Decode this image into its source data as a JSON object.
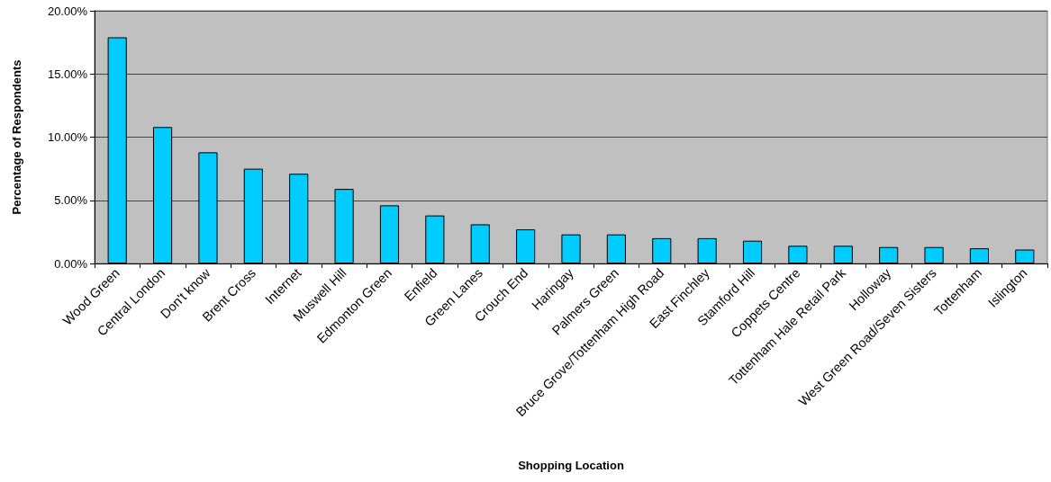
{
  "chart_data": {
    "type": "bar",
    "xlabel": "Shopping Location",
    "ylabel": "Percentage of Respondents",
    "categories": [
      "Wood Green",
      "Central London",
      "Don't know",
      "Brent Cross",
      "Internet",
      "Muswell Hill",
      "Edmonton Green",
      "Enfield",
      "Green Lanes",
      "Crouch End",
      "Haringay",
      "Palmers Green",
      "Bruce Grove/Tottenham High Road",
      "East Finchley",
      "Stamford Hill",
      "Coppets Centre",
      "Tottenham Hale Retail Park",
      "Holloway",
      "West Green Road/Seven Sisters",
      "Tottenham",
      "Islington"
    ],
    "values": [
      17.9,
      10.8,
      8.8,
      7.5,
      7.1,
      5.9,
      4.6,
      3.8,
      3.1,
      2.7,
      2.3,
      2.3,
      2.0,
      2.0,
      1.8,
      1.4,
      1.4,
      1.3,
      1.3,
      1.2,
      1.1
    ],
    "color": "#00ccff",
    "ylim": [
      0,
      20
    ],
    "yticks": [
      {
        "value": 0,
        "label": "0.00%"
      },
      {
        "value": 5,
        "label": "5.00%"
      },
      {
        "value": 10,
        "label": "10.00%"
      },
      {
        "value": 15,
        "label": "15.00%"
      },
      {
        "value": 20,
        "label": "20.00%"
      }
    ],
    "grid": "y"
  }
}
